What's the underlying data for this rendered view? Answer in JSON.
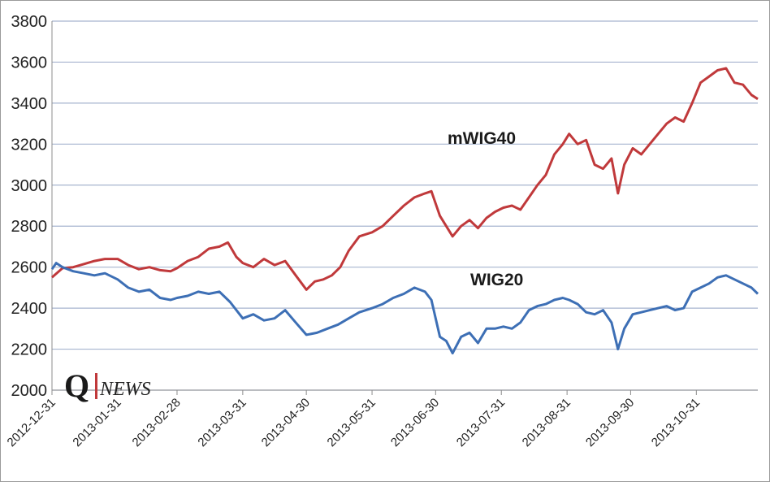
{
  "chart_data": {
    "type": "line",
    "title": "",
    "xlabel": "",
    "ylabel": "",
    "ylim": [
      2000,
      3800
    ],
    "yticks": [
      2000,
      2200,
      2400,
      2600,
      2800,
      3000,
      3200,
      3400,
      3600,
      3800
    ],
    "ytick_labels": [
      "2000",
      "2200",
      "2400",
      "2600",
      "2800",
      "3000",
      "3200",
      "3400",
      "3600",
      "3800"
    ],
    "xtick_labels": [
      "2012-12-31",
      "2013-01-31",
      "2013-02-28",
      "2013-03-31",
      "2013-04-30",
      "2013-05-31",
      "2013-06-30",
      "2013-07-31",
      "2013-08-31",
      "2013-09-30",
      "2013-10-31"
    ],
    "grid": true,
    "series": [
      {
        "name": "mWIG40",
        "color": "#c0393b",
        "points": [
          [
            "2012-12-31",
            2550
          ],
          [
            "2013-01-05",
            2595
          ],
          [
            "2013-01-10",
            2600
          ],
          [
            "2013-01-15",
            2615
          ],
          [
            "2013-01-20",
            2630
          ],
          [
            "2013-01-25",
            2640
          ],
          [
            "2013-01-31",
            2640
          ],
          [
            "2013-02-05",
            2610
          ],
          [
            "2013-02-10",
            2590
          ],
          [
            "2013-02-15",
            2600
          ],
          [
            "2013-02-20",
            2585
          ],
          [
            "2013-02-25",
            2580
          ],
          [
            "2013-02-28",
            2595
          ],
          [
            "2013-03-05",
            2630
          ],
          [
            "2013-03-10",
            2650
          ],
          [
            "2013-03-15",
            2690
          ],
          [
            "2013-03-20",
            2700
          ],
          [
            "2013-03-24",
            2720
          ],
          [
            "2013-03-28",
            2650
          ],
          [
            "2013-03-31",
            2620
          ],
          [
            "2013-04-05",
            2600
          ],
          [
            "2013-04-10",
            2640
          ],
          [
            "2013-04-15",
            2610
          ],
          [
            "2013-04-20",
            2630
          ],
          [
            "2013-04-25",
            2560
          ],
          [
            "2013-04-30",
            2490
          ],
          [
            "2013-05-04",
            2530
          ],
          [
            "2013-05-08",
            2540
          ],
          [
            "2013-05-12",
            2560
          ],
          [
            "2013-05-16",
            2600
          ],
          [
            "2013-05-20",
            2680
          ],
          [
            "2013-05-25",
            2750
          ],
          [
            "2013-05-31",
            2770
          ],
          [
            "2013-06-05",
            2800
          ],
          [
            "2013-06-10",
            2850
          ],
          [
            "2013-06-15",
            2900
          ],
          [
            "2013-06-20",
            2940
          ],
          [
            "2013-06-25",
            2960
          ],
          [
            "2013-06-28",
            2970
          ],
          [
            "2013-07-02",
            2850
          ],
          [
            "2013-07-05",
            2800
          ],
          [
            "2013-07-08",
            2750
          ],
          [
            "2013-07-12",
            2800
          ],
          [
            "2013-07-16",
            2830
          ],
          [
            "2013-07-20",
            2790
          ],
          [
            "2013-07-24",
            2840
          ],
          [
            "2013-07-28",
            2870
          ],
          [
            "2013-08-01",
            2890
          ],
          [
            "2013-08-05",
            2900
          ],
          [
            "2013-08-09",
            2880
          ],
          [
            "2013-08-13",
            2940
          ],
          [
            "2013-08-17",
            3000
          ],
          [
            "2013-08-21",
            3050
          ],
          [
            "2013-08-25",
            3150
          ],
          [
            "2013-08-29",
            3200
          ],
          [
            "2013-09-01",
            3250
          ],
          [
            "2013-09-05",
            3200
          ],
          [
            "2013-09-09",
            3220
          ],
          [
            "2013-09-13",
            3100
          ],
          [
            "2013-09-17",
            3080
          ],
          [
            "2013-09-21",
            3130
          ],
          [
            "2013-09-24",
            2960
          ],
          [
            "2013-09-27",
            3100
          ],
          [
            "2013-10-01",
            3180
          ],
          [
            "2013-10-05",
            3150
          ],
          [
            "2013-10-09",
            3200
          ],
          [
            "2013-10-13",
            3250
          ],
          [
            "2013-10-17",
            3300
          ],
          [
            "2013-10-21",
            3330
          ],
          [
            "2013-10-25",
            3310
          ],
          [
            "2013-10-29",
            3400
          ],
          [
            "2013-11-02",
            3500
          ],
          [
            "2013-11-06",
            3530
          ],
          [
            "2013-11-10",
            3560
          ],
          [
            "2013-11-14",
            3570
          ],
          [
            "2013-11-18",
            3500
          ],
          [
            "2013-11-22",
            3490
          ],
          [
            "2013-11-26",
            3440
          ],
          [
            "2013-11-29",
            3420
          ]
        ]
      },
      {
        "name": "WIG20",
        "color": "#3d6fb5",
        "points": [
          [
            "2012-12-31",
            2590
          ],
          [
            "2013-01-02",
            2620
          ],
          [
            "2013-01-05",
            2600
          ],
          [
            "2013-01-10",
            2580
          ],
          [
            "2013-01-15",
            2570
          ],
          [
            "2013-01-20",
            2560
          ],
          [
            "2013-01-25",
            2570
          ],
          [
            "2013-01-31",
            2540
          ],
          [
            "2013-02-05",
            2500
          ],
          [
            "2013-02-10",
            2480
          ],
          [
            "2013-02-15",
            2490
          ],
          [
            "2013-02-20",
            2450
          ],
          [
            "2013-02-25",
            2440
          ],
          [
            "2013-02-28",
            2450
          ],
          [
            "2013-03-05",
            2460
          ],
          [
            "2013-03-10",
            2480
          ],
          [
            "2013-03-15",
            2470
          ],
          [
            "2013-03-20",
            2480
          ],
          [
            "2013-03-25",
            2430
          ],
          [
            "2013-03-31",
            2350
          ],
          [
            "2013-04-05",
            2370
          ],
          [
            "2013-04-10",
            2340
          ],
          [
            "2013-04-15",
            2350
          ],
          [
            "2013-04-20",
            2390
          ],
          [
            "2013-04-25",
            2330
          ],
          [
            "2013-04-30",
            2270
          ],
          [
            "2013-05-05",
            2280
          ],
          [
            "2013-05-10",
            2300
          ],
          [
            "2013-05-15",
            2320
          ],
          [
            "2013-05-20",
            2350
          ],
          [
            "2013-05-25",
            2380
          ],
          [
            "2013-05-31",
            2400
          ],
          [
            "2013-06-05",
            2420
          ],
          [
            "2013-06-10",
            2450
          ],
          [
            "2013-06-15",
            2470
          ],
          [
            "2013-06-20",
            2500
          ],
          [
            "2013-06-25",
            2480
          ],
          [
            "2013-06-28",
            2440
          ],
          [
            "2013-07-02",
            2260
          ],
          [
            "2013-07-05",
            2240
          ],
          [
            "2013-07-08",
            2180
          ],
          [
            "2013-07-12",
            2260
          ],
          [
            "2013-07-16",
            2280
          ],
          [
            "2013-07-20",
            2230
          ],
          [
            "2013-07-24",
            2300
          ],
          [
            "2013-07-28",
            2300
          ],
          [
            "2013-08-01",
            2310
          ],
          [
            "2013-08-05",
            2300
          ],
          [
            "2013-08-09",
            2330
          ],
          [
            "2013-08-13",
            2390
          ],
          [
            "2013-08-17",
            2410
          ],
          [
            "2013-08-21",
            2420
          ],
          [
            "2013-08-25",
            2440
          ],
          [
            "2013-08-29",
            2450
          ],
          [
            "2013-09-01",
            2440
          ],
          [
            "2013-09-05",
            2420
          ],
          [
            "2013-09-09",
            2380
          ],
          [
            "2013-09-13",
            2370
          ],
          [
            "2013-09-17",
            2390
          ],
          [
            "2013-09-21",
            2330
          ],
          [
            "2013-09-24",
            2200
          ],
          [
            "2013-09-27",
            2300
          ],
          [
            "2013-10-01",
            2370
          ],
          [
            "2013-10-05",
            2380
          ],
          [
            "2013-10-09",
            2390
          ],
          [
            "2013-10-13",
            2400
          ],
          [
            "2013-10-17",
            2410
          ],
          [
            "2013-10-21",
            2390
          ],
          [
            "2013-10-25",
            2400
          ],
          [
            "2013-10-29",
            2480
          ],
          [
            "2013-11-02",
            2500
          ],
          [
            "2013-11-06",
            2520
          ],
          [
            "2013-11-10",
            2550
          ],
          [
            "2013-11-14",
            2560
          ],
          [
            "2013-11-18",
            2540
          ],
          [
            "2013-11-22",
            2520
          ],
          [
            "2013-11-26",
            2500
          ],
          [
            "2013-11-29",
            2470
          ]
        ]
      }
    ],
    "annotations": [
      "mWIG40",
      "WIG20"
    ]
  },
  "logo": {
    "mark": "Q",
    "text": "NEWS"
  }
}
